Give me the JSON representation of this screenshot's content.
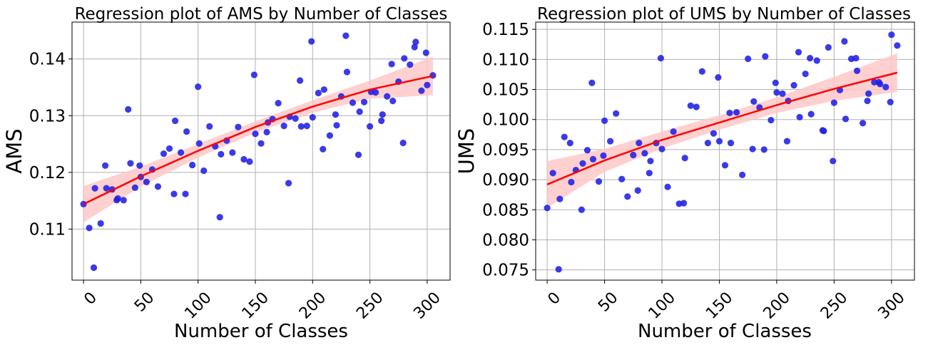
{
  "chart_data": [
    {
      "type": "scatter",
      "title": "Regression plot of AMS by Number of Classes",
      "xlabel": "Number of Classes",
      "ylabel": "AMS",
      "xlim": [
        -10,
        320
      ],
      "ylim": [
        0.101,
        0.1465
      ],
      "xticks": [
        0,
        50,
        100,
        150,
        200,
        250,
        300
      ],
      "xtick_labels": [
        "0",
        "50",
        "100",
        "150",
        "200",
        "250",
        "300"
      ],
      "yticks": [
        0.11,
        0.12,
        0.13,
        0.14
      ],
      "ytick_labels": [
        "0.11",
        "0.12",
        "0.13",
        "0.14"
      ],
      "grid": true,
      "colors": {
        "points": "#1f1fe6",
        "fit": "#ff0000",
        "band": "#ffc8c8"
      },
      "points": [
        [
          0,
          0.1144
        ],
        [
          5,
          0.1102
        ],
        [
          9,
          0.1032
        ],
        [
          10,
          0.1172
        ],
        [
          15,
          0.111
        ],
        [
          19,
          0.1212
        ],
        [
          20,
          0.1172
        ],
        [
          25,
          0.117
        ],
        [
          29,
          0.1151
        ],
        [
          30,
          0.1154
        ],
        [
          35,
          0.1151
        ],
        [
          39,
          0.1311
        ],
        [
          41,
          0.1216
        ],
        [
          45,
          0.1173
        ],
        [
          49,
          0.1212
        ],
        [
          50,
          0.1192
        ],
        [
          55,
          0.1183
        ],
        [
          60,
          0.1205
        ],
        [
          65,
          0.1175
        ],
        [
          70,
          0.1233
        ],
        [
          75,
          0.1242
        ],
        [
          79,
          0.1162
        ],
        [
          80,
          0.1291
        ],
        [
          85,
          0.1235
        ],
        [
          89,
          0.1162
        ],
        [
          90,
          0.1272
        ],
        [
          95,
          0.1213
        ],
        [
          100,
          0.1351
        ],
        [
          101,
          0.1251
        ],
        [
          105,
          0.1203
        ],
        [
          110,
          0.1281
        ],
        [
          115,
          0.1246
        ],
        [
          119,
          0.1121
        ],
        [
          120,
          0.1232
        ],
        [
          125,
          0.1256
        ],
        [
          130,
          0.1235
        ],
        [
          135,
          0.128
        ],
        [
          140,
          0.1223
        ],
        [
          145,
          0.1219
        ],
        [
          149,
          0.1372
        ],
        [
          150,
          0.1268
        ],
        [
          155,
          0.1251
        ],
        [
          160,
          0.1271
        ],
        [
          161,
          0.1288
        ],
        [
          165,
          0.1294
        ],
        [
          170,
          0.1322
        ],
        [
          175,
          0.1282
        ],
        [
          179,
          0.1181
        ],
        [
          180,
          0.1298
        ],
        [
          185,
          0.1295
        ],
        [
          189,
          0.1362
        ],
        [
          190,
          0.1281
        ],
        [
          195,
          0.1282
        ],
        [
          199,
          0.1431
        ],
        [
          200,
          0.1297
        ],
        [
          205,
          0.134
        ],
        [
          209,
          0.1241
        ],
        [
          210,
          0.1346
        ],
        [
          215,
          0.1265
        ],
        [
          220,
          0.1302
        ],
        [
          221,
          0.1283
        ],
        [
          225,
          0.1334
        ],
        [
          229,
          0.1441
        ],
        [
          230,
          0.1377
        ],
        [
          235,
          0.1323
        ],
        [
          240,
          0.1231
        ],
        [
          241,
          0.1307
        ],
        [
          245,
          0.1324
        ],
        [
          250,
          0.1281
        ],
        [
          251,
          0.1342
        ],
        [
          255,
          0.1341
        ],
        [
          260,
          0.1291
        ],
        [
          261,
          0.1302
        ],
        [
          265,
          0.1334
        ],
        [
          269,
          0.1391
        ],
        [
          270,
          0.1326
        ],
        [
          275,
          0.136
        ],
        [
          279,
          0.1252
        ],
        [
          280,
          0.1401
        ],
        [
          285,
          0.139
        ],
        [
          289,
          0.1421
        ],
        [
          290,
          0.143
        ],
        [
          295,
          0.1344
        ],
        [
          299,
          0.1411
        ],
        [
          300,
          0.1354
        ],
        [
          305,
          0.1371
        ]
      ],
      "fit": [
        [
          0,
          0.1144
        ],
        [
          50,
          0.1193
        ],
        [
          100,
          0.1238
        ],
        [
          150,
          0.128
        ],
        [
          200,
          0.1316
        ],
        [
          250,
          0.1346
        ],
        [
          305,
          0.137
        ]
      ],
      "ci_lower": [
        [
          0,
          0.1112
        ],
        [
          50,
          0.1175
        ],
        [
          100,
          0.1226
        ],
        [
          150,
          0.127
        ],
        [
          200,
          0.1305
        ],
        [
          250,
          0.133
        ],
        [
          305,
          0.1336
        ]
      ],
      "ci_upper": [
        [
          0,
          0.1176
        ],
        [
          50,
          0.121
        ],
        [
          100,
          0.125
        ],
        [
          150,
          0.129
        ],
        [
          200,
          0.1327
        ],
        [
          250,
          0.1362
        ],
        [
          305,
          0.1404
        ]
      ]
    },
    {
      "type": "scatter",
      "title": "Regression plot of UMS by Number of Classes",
      "xlabel": "Number of Classes",
      "ylabel": "UMS",
      "xlim": [
        -10,
        320
      ],
      "ylim": [
        0.0733,
        0.1162
      ],
      "xticks": [
        0,
        50,
        100,
        150,
        200,
        250,
        300
      ],
      "xtick_labels": [
        "0",
        "50",
        "100",
        "150",
        "200",
        "250",
        "300"
      ],
      "yticks": [
        0.075,
        0.08,
        0.085,
        0.09,
        0.095,
        0.1,
        0.105,
        0.11,
        0.115
      ],
      "ytick_labels": [
        "0.075",
        "0.080",
        "0.085",
        "0.090",
        "0.095",
        "0.100",
        "0.105",
        "0.110",
        "0.115"
      ],
      "grid": true,
      "colors": {
        "points": "#1f1fe6",
        "fit": "#ff0000",
        "band": "#ffc8c8"
      },
      "points": [
        [
          0,
          0.0853
        ],
        [
          5,
          0.0911
        ],
        [
          10,
          0.0751
        ],
        [
          11,
          0.0868
        ],
        [
          15,
          0.0971
        ],
        [
          20,
          0.0961
        ],
        [
          21,
          0.0896
        ],
        [
          25,
          0.0916
        ],
        [
          30,
          0.085
        ],
        [
          31,
          0.0927
        ],
        [
          35,
          0.0949
        ],
        [
          39,
          0.1061
        ],
        [
          40,
          0.0934
        ],
        [
          45,
          0.0897
        ],
        [
          49,
          0.094
        ],
        [
          50,
          0.0998
        ],
        [
          55,
          0.0964
        ],
        [
          60,
          0.101
        ],
        [
          65,
          0.0901
        ],
        [
          70,
          0.0872
        ],
        [
          75,
          0.0941
        ],
        [
          79,
          0.0882
        ],
        [
          80,
          0.0961
        ],
        [
          85,
          0.0944
        ],
        [
          89,
          0.0911
        ],
        [
          90,
          0.0931
        ],
        [
          95,
          0.0961
        ],
        [
          99,
          0.1102
        ],
        [
          100,
          0.0951
        ],
        [
          105,
          0.0888
        ],
        [
          110,
          0.098
        ],
        [
          115,
          0.086
        ],
        [
          119,
          0.0861
        ],
        [
          120,
          0.0936
        ],
        [
          125,
          0.1023
        ],
        [
          130,
          0.1021
        ],
        [
          135,
          0.108
        ],
        [
          140,
          0.0961
        ],
        [
          145,
          0.0977
        ],
        [
          149,
          0.107
        ],
        [
          150,
          0.0964
        ],
        [
          155,
          0.0924
        ],
        [
          159,
          0.1011
        ],
        [
          160,
          0.0961
        ],
        [
          165,
          0.1012
        ],
        [
          170,
          0.0908
        ],
        [
          175,
          0.1101
        ],
        [
          179,
          0.0951
        ],
        [
          180,
          0.103
        ],
        [
          185,
          0.102
        ],
        [
          189,
          0.095
        ],
        [
          190,
          0.1105
        ],
        [
          195,
          0.0999
        ],
        [
          199,
          0.1061
        ],
        [
          200,
          0.1045
        ],
        [
          205,
          0.1043
        ],
        [
          209,
          0.0964
        ],
        [
          210,
          0.1031
        ],
        [
          215,
          0.1057
        ],
        [
          219,
          0.1112
        ],
        [
          220,
          0.1004
        ],
        [
          225,
          0.1076
        ],
        [
          229,
          0.1102
        ],
        [
          230,
          0.1009
        ],
        [
          235,
          0.1098
        ],
        [
          240,
          0.0982
        ],
        [
          241,
          0.0981
        ],
        [
          245,
          0.112
        ],
        [
          249,
          0.0931
        ],
        [
          250,
          0.1028
        ],
        [
          255,
          0.1049
        ],
        [
          259,
          0.113
        ],
        [
          260,
          0.1001
        ],
        [
          265,
          0.1101
        ],
        [
          269,
          0.1102
        ],
        [
          270,
          0.1081
        ],
        [
          275,
          0.0994
        ],
        [
          279,
          0.1031
        ],
        [
          280,
          0.1043
        ],
        [
          285,
          0.1062
        ],
        [
          289,
          0.1062
        ],
        [
          290,
          0.1059
        ],
        [
          295,
          0.1054
        ],
        [
          299,
          0.1029
        ],
        [
          300,
          0.1141
        ],
        [
          305,
          0.1123
        ]
      ],
      "fit": [
        [
          0,
          0.0892
        ],
        [
          50,
          0.0932
        ],
        [
          100,
          0.0966
        ],
        [
          150,
          0.0995
        ],
        [
          200,
          0.1024
        ],
        [
          250,
          0.1051
        ],
        [
          305,
          0.1078
        ]
      ],
      "ci_lower": [
        [
          0,
          0.0853
        ],
        [
          50,
          0.0913
        ],
        [
          100,
          0.0952
        ],
        [
          150,
          0.0983
        ],
        [
          200,
          0.1011
        ],
        [
          250,
          0.1031
        ],
        [
          305,
          0.1046
        ]
      ],
      "ci_upper": [
        [
          0,
          0.0931
        ],
        [
          50,
          0.0951
        ],
        [
          100,
          0.098
        ],
        [
          150,
          0.1007
        ],
        [
          200,
          0.1037
        ],
        [
          250,
          0.1071
        ],
        [
          305,
          0.111
        ]
      ]
    }
  ]
}
